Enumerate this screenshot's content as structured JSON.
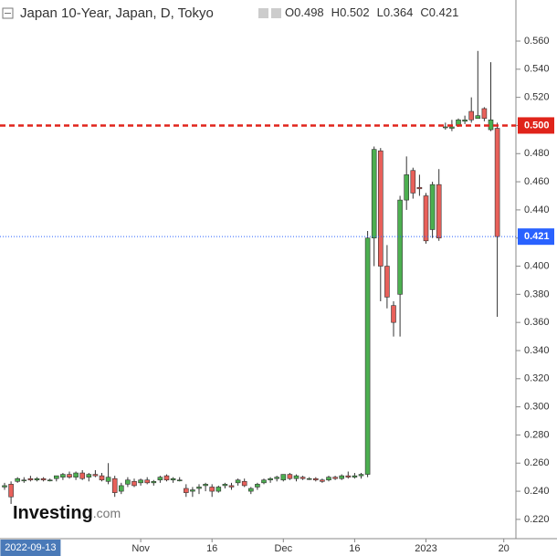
{
  "chart_data": {
    "type": "candlestick",
    "title": "Japan 10-Year, Japan, D, Tokyo",
    "header_quote": [
      {
        "label": "O",
        "value": 0.498
      },
      {
        "label": "H",
        "value": 0.502
      },
      {
        "label": "L",
        "value": 0.364
      },
      {
        "label": "C",
        "value": 0.421
      }
    ],
    "categories": [
      null,
      null,
      null,
      null,
      "2022-09-13",
      null,
      null,
      null,
      null,
      null,
      null,
      null,
      null,
      null,
      null,
      null,
      null,
      null,
      null,
      null,
      null,
      "Nov",
      null,
      null,
      null,
      null,
      null,
      null,
      null,
      null,
      null,
      null,
      "16",
      null,
      null,
      null,
      null,
      null,
      null,
      null,
      null,
      null,
      null,
      "Dec",
      null,
      null,
      null,
      null,
      null,
      null,
      null,
      null,
      null,
      null,
      "16",
      null,
      null,
      null,
      null,
      null,
      null,
      null,
      null,
      null,
      null,
      "2023",
      null,
      null,
      null,
      null,
      null,
      null,
      null,
      null,
      null,
      null,
      null,
      "20"
    ],
    "ohlc": [
      [
        0.243,
        0.246,
        0.241,
        0.244
      ],
      [
        0.245,
        0.247,
        0.231,
        0.236
      ],
      [
        0.247,
        0.25,
        0.246,
        0.249
      ],
      [
        0.248,
        0.25,
        0.246,
        0.248
      ],
      [
        0.249,
        0.251,
        0.247,
        0.248
      ],
      [
        0.248,
        0.25,
        0.247,
        0.249
      ],
      [
        0.249,
        0.25,
        0.247,
        0.248
      ],
      [
        0.248,
        0.249,
        0.247,
        0.248
      ],
      [
        0.249,
        0.251,
        0.247,
        0.251
      ],
      [
        0.25,
        0.253,
        0.248,
        0.252
      ],
      [
        0.252,
        0.254,
        0.249,
        0.25
      ],
      [
        0.25,
        0.254,
        0.248,
        0.253
      ],
      [
        0.253,
        0.255,
        0.248,
        0.249
      ],
      [
        0.25,
        0.253,
        0.247,
        0.252
      ],
      [
        0.252,
        0.255,
        0.25,
        0.251
      ],
      [
        0.251,
        0.253,
        0.247,
        0.248
      ],
      [
        0.247,
        0.26,
        0.245,
        0.25
      ],
      [
        0.249,
        0.251,
        0.236,
        0.239
      ],
      [
        0.24,
        0.246,
        0.238,
        0.244
      ],
      [
        0.245,
        0.25,
        0.243,
        0.248
      ],
      [
        0.247,
        0.249,
        0.243,
        0.244
      ],
      [
        0.246,
        0.249,
        0.244,
        0.248
      ],
      [
        0.248,
        0.25,
        0.245,
        0.246
      ],
      [
        0.246,
        0.248,
        0.244,
        0.247
      ],
      [
        0.248,
        0.251,
        0.246,
        0.25
      ],
      [
        0.251,
        0.252,
        0.247,
        0.248
      ],
      [
        0.248,
        0.25,
        0.246,
        0.249
      ],
      [
        0.248,
        0.25,
        0.247,
        0.248
      ],
      [
        0.242,
        0.245,
        0.236,
        0.239
      ],
      [
        0.24,
        0.243,
        0.236,
        0.241
      ],
      [
        0.242,
        0.245,
        0.238,
        0.243
      ],
      [
        0.244,
        0.246,
        0.24,
        0.245
      ],
      [
        0.243,
        0.245,
        0.236,
        0.24
      ],
      [
        0.24,
        0.244,
        0.239,
        0.243
      ],
      [
        0.244,
        0.246,
        0.242,
        0.245
      ],
      [
        0.244,
        0.246,
        0.241,
        0.243
      ],
      [
        0.246,
        0.249,
        0.244,
        0.248
      ],
      [
        0.247,
        0.249,
        0.243,
        0.244
      ],
      [
        0.24,
        0.243,
        0.238,
        0.242
      ],
      [
        0.243,
        0.246,
        0.241,
        0.245
      ],
      [
        0.246,
        0.249,
        0.245,
        0.248
      ],
      [
        0.248,
        0.25,
        0.246,
        0.249
      ],
      [
        0.249,
        0.251,
        0.247,
        0.25
      ],
      [
        0.248,
        0.252,
        0.247,
        0.252
      ],
      [
        0.252,
        0.253,
        0.248,
        0.249
      ],
      [
        0.249,
        0.252,
        0.247,
        0.251
      ],
      [
        0.25,
        0.251,
        0.248,
        0.249
      ],
      [
        0.249,
        0.25,
        0.248,
        0.249
      ],
      [
        0.249,
        0.25,
        0.247,
        0.248
      ],
      [
        0.248,
        0.249,
        0.246,
        0.247
      ],
      [
        0.248,
        0.251,
        0.247,
        0.25
      ],
      [
        0.25,
        0.251,
        0.248,
        0.249
      ],
      [
        0.249,
        0.252,
        0.248,
        0.251
      ],
      [
        0.251,
        0.254,
        0.249,
        0.25
      ],
      [
        0.25,
        0.253,
        0.249,
        0.251
      ],
      [
        0.251,
        0.253,
        0.249,
        0.252
      ],
      [
        0.252,
        0.425,
        0.25,
        0.42
      ],
      [
        0.42,
        0.485,
        0.4,
        0.483
      ],
      [
        0.482,
        0.484,
        0.375,
        0.4
      ],
      [
        0.4,
        0.415,
        0.37,
        0.378
      ],
      [
        0.372,
        0.375,
        0.35,
        0.36
      ],
      [
        0.38,
        0.45,
        0.35,
        0.447
      ],
      [
        0.447,
        0.478,
        0.44,
        0.465
      ],
      [
        0.468,
        0.47,
        0.448,
        0.452
      ],
      [
        0.456,
        0.465,
        0.45,
        0.455
      ],
      [
        0.45,
        0.452,
        0.416,
        0.418
      ],
      [
        0.426,
        0.46,
        0.42,
        0.458
      ],
      [
        0.458,
        0.469,
        0.418,
        0.42
      ],
      [
        0.499,
        0.502,
        0.497,
        0.499
      ],
      [
        0.498,
        0.504,
        0.496,
        0.499
      ],
      [
        0.5,
        0.505,
        0.499,
        0.504
      ],
      [
        0.503,
        0.507,
        0.501,
        0.504
      ],
      [
        0.51,
        0.52,
        0.502,
        0.504
      ],
      [
        0.505,
        0.553,
        0.505,
        0.507
      ],
      [
        0.512,
        0.513,
        0.503,
        0.505
      ],
      [
        0.497,
        0.545,
        0.496,
        0.504
      ],
      [
        0.498,
        0.502,
        0.364,
        0.421
      ],
      null
    ],
    "up_color": "#4caf50",
    "down_color": "#e8605a",
    "ylim": [
      0.2076,
      0.5892
    ],
    "yticks": [
      {
        "value": 0.22,
        "label": "0.220"
      },
      {
        "value": 0.24,
        "label": "0.240"
      },
      {
        "value": 0.26,
        "label": "0.260"
      },
      {
        "value": 0.28,
        "label": "0.280"
      },
      {
        "value": 0.3,
        "label": "0.300"
      },
      {
        "value": 0.32,
        "label": "0.320"
      },
      {
        "value": 0.34,
        "label": "0.340"
      },
      {
        "value": 0.36,
        "label": "0.360"
      },
      {
        "value": 0.38,
        "label": "0.380"
      },
      {
        "value": 0.4,
        "label": "0.400"
      },
      {
        "value": 0.42,
        "label": "0.420"
      },
      {
        "value": 0.44,
        "label": "0.440"
      },
      {
        "value": 0.46,
        "label": "0.460"
      },
      {
        "value": 0.48,
        "label": "0.480"
      },
      {
        "value": 0.5,
        "label": "0.500"
      },
      {
        "value": 0.52,
        "label": "0.520"
      },
      {
        "value": 0.54,
        "label": "0.540"
      },
      {
        "value": 0.56,
        "label": "0.560"
      }
    ],
    "levels": [
      {
        "value": 0.5,
        "label": "0.500",
        "color": "#e0241b"
      },
      {
        "value": 0.421,
        "label": "0.421",
        "color": "#2962ff"
      }
    ],
    "logo": {
      "name": "Investing",
      "suffix": ".com"
    }
  }
}
